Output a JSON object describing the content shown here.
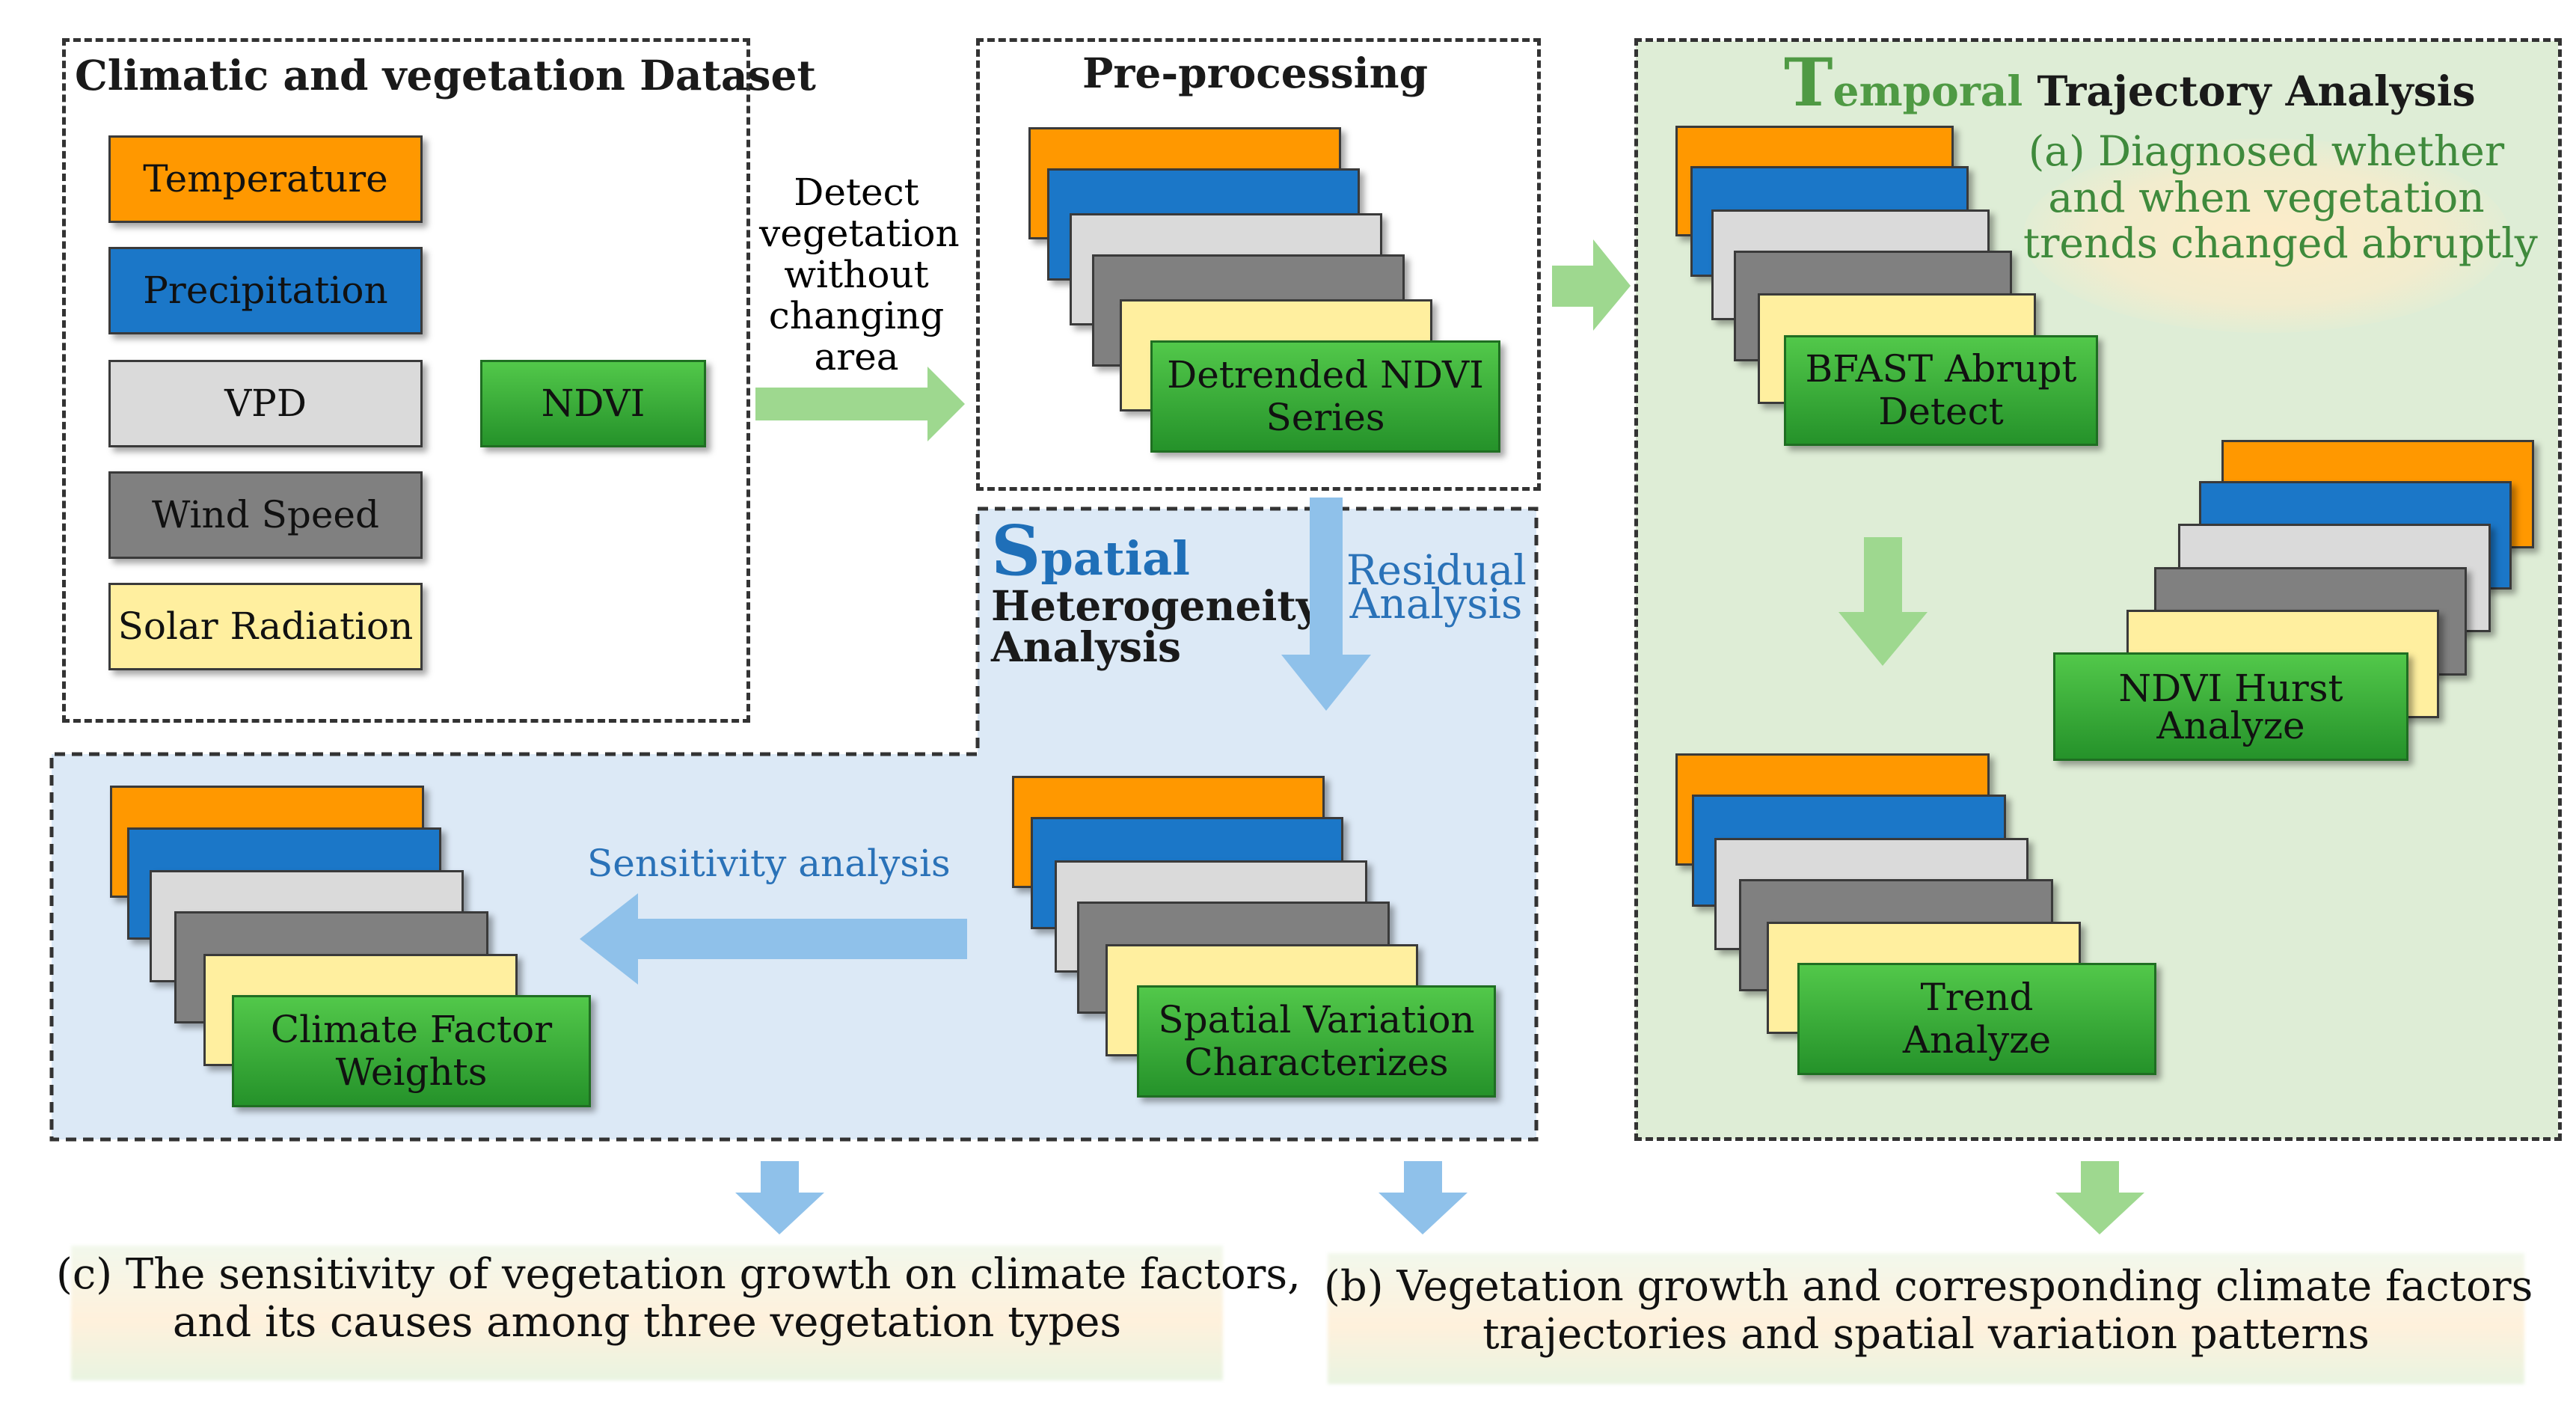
{
  "dataset_panel": {
    "title": "Climatic and vegetation Dataset",
    "factors": [
      "Temperature",
      "Precipitation",
      "VPD",
      "Wind Speed",
      "Solar Radiation"
    ],
    "ndvi": "NDVI"
  },
  "arrow_detect_label": "Detect\nvegetation\nwithout\nchanging\narea",
  "preprocessing": {
    "title": "Pre-processing",
    "output": "Detrended NDVI\nSeries"
  },
  "temporal": {
    "title_initial": "T",
    "title_word": "emporal",
    "title_rest": " Trajectory Analysis",
    "note": "(a) Diagnosed whether\nand when vegetation\ntrends changed abruptly",
    "bfast": "BFAST Abrupt\nDetect",
    "hurst": "NDVI Hurst\nAnalyze",
    "trend": "Trend\nAnalyze"
  },
  "spatial": {
    "title_initial": "S",
    "title_word": "patial",
    "title_rest": "Heterogeneity\nAnalysis",
    "residual_label": "Residual\nAnalysis",
    "sensitivity_label": "Sensitivity analysis",
    "variation": "Spatial Variation\nCharacterizes",
    "weights": "Climate Factor\nWeights"
  },
  "outcomes": {
    "c": "(c) The sensitivity of vegetation growth on climate factors,\nand its causes among three vegetation types",
    "b": "(b) Vegetation growth and corresponding climate factors\ntrajectories and spatial variation patterns"
  },
  "colors": {
    "temperature": "#ff9800",
    "precipitation": "#1b77c8",
    "vpd": "#dadada",
    "wind_speed": "#808080",
    "solar_radiation": "#ffef9f",
    "result": "#3fb43e",
    "spatial_bg": "#dce9f6",
    "temporal_bg": "#deedd6",
    "blue_arrow": "#8fc1ea",
    "green_arrow": "#9ed88f"
  }
}
